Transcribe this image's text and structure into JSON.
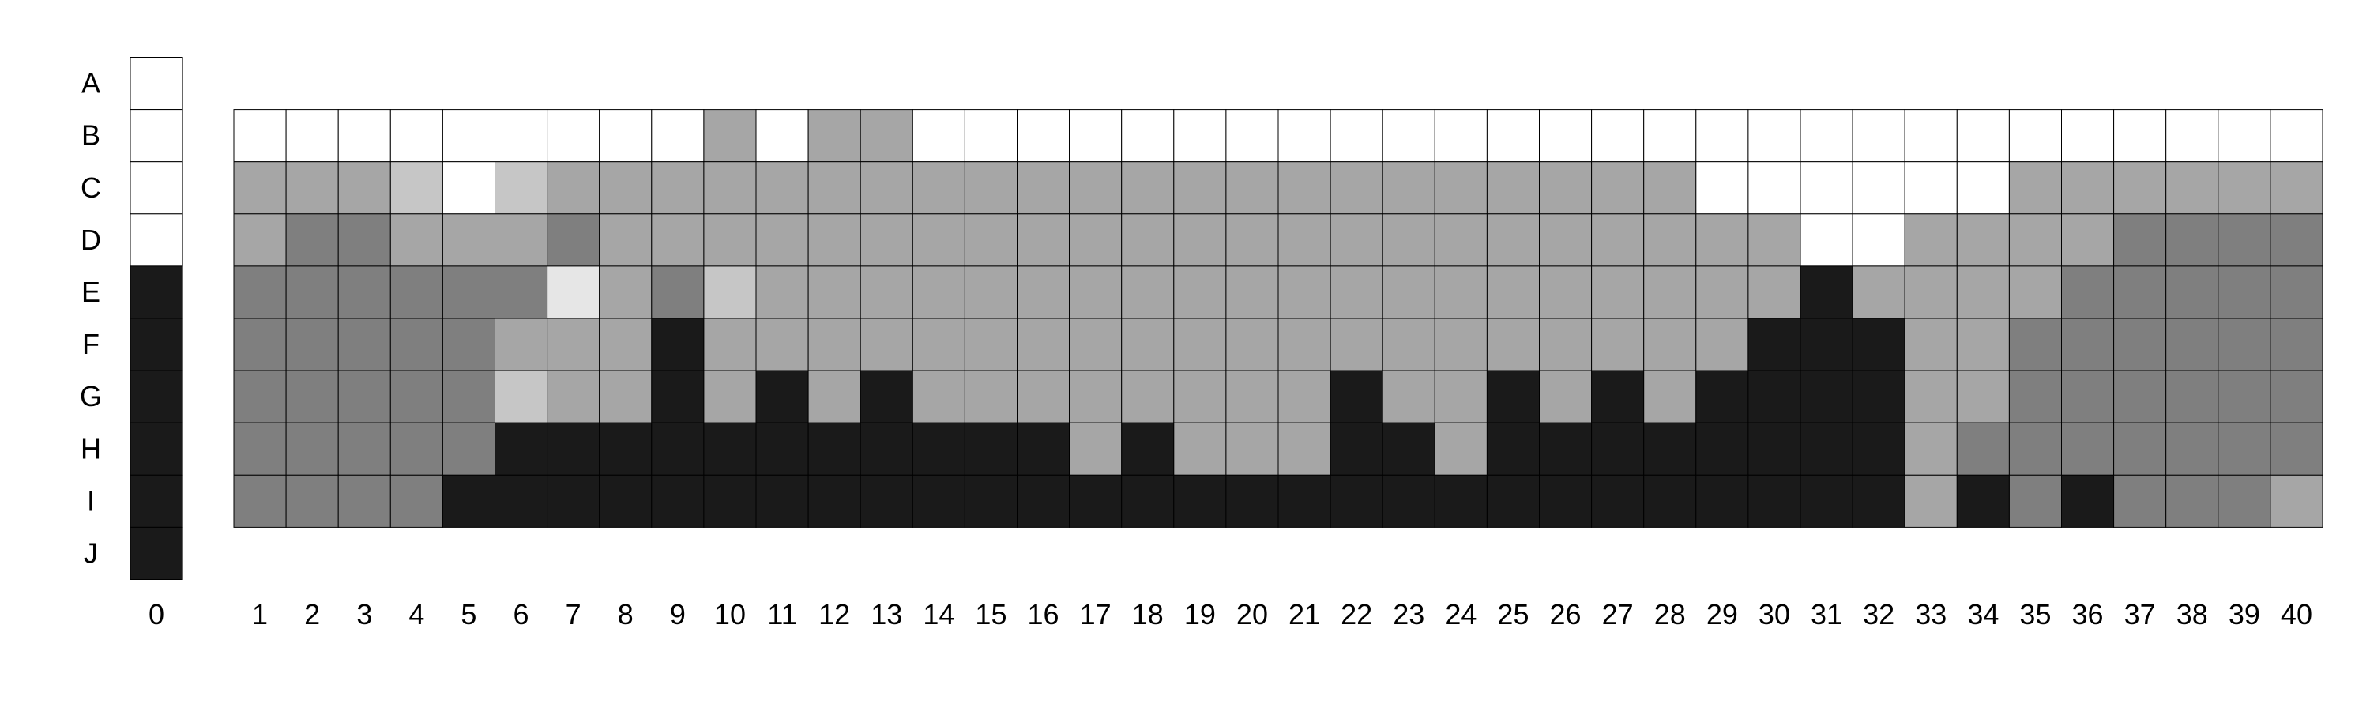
{
  "chart_data": {
    "type": "heatmap",
    "title": "",
    "xlabel": "",
    "ylabel": "",
    "legend": "none",
    "grid": true,
    "row_labels": [
      "A",
      "B",
      "C",
      "D",
      "E",
      "F",
      "G",
      "H",
      "I",
      "J"
    ],
    "left_column": {
      "label": "0",
      "rows": [
        "A",
        "B",
        "C",
        "D",
        "E",
        "F",
        "G",
        "H",
        "I",
        "J"
      ],
      "values": [
        0,
        0,
        0,
        0,
        1,
        1,
        1,
        1,
        1,
        1
      ]
    },
    "column_labels": [
      "1",
      "2",
      "3",
      "4",
      "5",
      "6",
      "7",
      "8",
      "9",
      "10",
      "11",
      "12",
      "13",
      "14",
      "15",
      "16",
      "17",
      "18",
      "19",
      "20",
      "21",
      "22",
      "23",
      "24",
      "25",
      "26",
      "27",
      "28",
      "29",
      "30",
      "31",
      "32",
      "33",
      "34",
      "35",
      "36",
      "37",
      "38",
      "39",
      "40"
    ],
    "grid_rows": [
      "B",
      "C",
      "D",
      "E",
      "F",
      "G",
      "H",
      "I"
    ],
    "values": [
      [
        0,
        0,
        0,
        0,
        0,
        0,
        0,
        0,
        0,
        0.39,
        0,
        0.39,
        0.39,
        0,
        0,
        0,
        0,
        0,
        0,
        0,
        0,
        0,
        0,
        0,
        0,
        0,
        0,
        0,
        0,
        0,
        0,
        0,
        0,
        0,
        0,
        0,
        0,
        0,
        0,
        0
      ],
      [
        0.39,
        0.39,
        0.39,
        0.25,
        0,
        0.25,
        0.39,
        0.39,
        0.39,
        0.39,
        0.39,
        0.39,
        0.39,
        0.39,
        0.39,
        0.39,
        0.39,
        0.39,
        0.39,
        0.39,
        0.39,
        0.39,
        0.39,
        0.39,
        0.39,
        0.39,
        0.39,
        0.39,
        0,
        0,
        0,
        0,
        0,
        0,
        0.39,
        0.39,
        0.39,
        0.39,
        0.39,
        0.39
      ],
      [
        0.39,
        0.56,
        0.56,
        0.39,
        0.39,
        0.39,
        0.56,
        0.39,
        0.39,
        0.39,
        0.39,
        0.39,
        0.39,
        0.39,
        0.39,
        0.39,
        0.39,
        0.39,
        0.39,
        0.39,
        0.39,
        0.39,
        0.39,
        0.39,
        0.39,
        0.39,
        0.39,
        0.39,
        0.39,
        0.39,
        0,
        0,
        0.39,
        0.39,
        0.39,
        0.39,
        0.56,
        0.56,
        0.56,
        0.56
      ],
      [
        0.56,
        0.56,
        0.56,
        0.56,
        0.56,
        0.56,
        0.11,
        0.39,
        0.56,
        0.25,
        0.39,
        0.39,
        0.39,
        0.39,
        0.39,
        0.39,
        0.39,
        0.39,
        0.39,
        0.39,
        0.39,
        0.39,
        0.39,
        0.39,
        0.39,
        0.39,
        0.39,
        0.39,
        0.39,
        0.39,
        1,
        0.39,
        0.39,
        0.39,
        0.39,
        0.56,
        0.56,
        0.56,
        0.56,
        0.56
      ],
      [
        0.56,
        0.56,
        0.56,
        0.56,
        0.56,
        0.39,
        0.39,
        0.39,
        1,
        0.39,
        0.39,
        0.39,
        0.39,
        0.39,
        0.39,
        0.39,
        0.39,
        0.39,
        0.39,
        0.39,
        0.39,
        0.39,
        0.39,
        0.39,
        0.39,
        0.39,
        0.39,
        0.39,
        0.39,
        1,
        1,
        1,
        0.39,
        0.39,
        0.56,
        0.56,
        0.56,
        0.56,
        0.56,
        0.56
      ],
      [
        0.56,
        0.56,
        0.56,
        0.56,
        0.56,
        0.25,
        0.39,
        0.39,
        1,
        0.39,
        1,
        0.39,
        1,
        0.39,
        0.39,
        0.39,
        0.39,
        0.39,
        0.39,
        0.39,
        0.39,
        1,
        0.39,
        0.39,
        1,
        0.39,
        1,
        0.39,
        1,
        1,
        1,
        1,
        0.39,
        0.39,
        0.56,
        0.56,
        0.56,
        0.56,
        0.56,
        0.56
      ],
      [
        0.56,
        0.56,
        0.56,
        0.56,
        0.56,
        1,
        1,
        1,
        1,
        1,
        1,
        1,
        1,
        1,
        1,
        1,
        0.39,
        1,
        0.39,
        0.39,
        0.39,
        1,
        1,
        0.39,
        1,
        1,
        1,
        1,
        1,
        1,
        1,
        1,
        0.39,
        0.56,
        0.56,
        0.56,
        0.56,
        0.56,
        0.56,
        0.56
      ],
      [
        0.56,
        0.56,
        0.56,
        0.56,
        1,
        1,
        1,
        1,
        1,
        1,
        1,
        1,
        1,
        1,
        1,
        1,
        1,
        1,
        1,
        1,
        1,
        1,
        1,
        1,
        1,
        1,
        1,
        1,
        1,
        1,
        1,
        1,
        0.39,
        1,
        0.56,
        1,
        0.56,
        0.56,
        0.56,
        0.39
      ]
    ],
    "value_range": [
      0,
      1
    ],
    "colors": {
      "background": "#ffffff",
      "cell_border": "#000000",
      "scale_low": "#ffffff",
      "scale_high": "#1a1a1a"
    }
  }
}
